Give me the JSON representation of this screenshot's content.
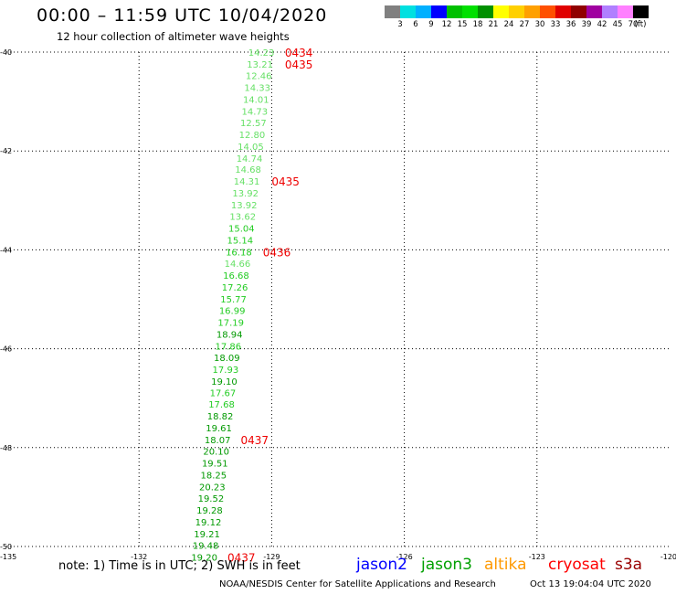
{
  "header": {
    "title": "00:00 – 11:59 UTC 10/04/2020",
    "subtitle": "12 hour collection of altimeter wave heights"
  },
  "color_scale": {
    "colors": [
      "#808080",
      "#00e0e0",
      "#00b0ff",
      "#0000ff",
      "#00c000",
      "#00e000",
      "#009000",
      "#ffff00",
      "#ffd000",
      "#ffa000",
      "#ff5000",
      "#e00000",
      "#900000",
      "#a000a0",
      "#b080ff",
      "#ff80ff",
      "#000000"
    ],
    "labels": [
      "3",
      "6",
      "9",
      "12",
      "15",
      "18",
      "21",
      "24",
      "27",
      "30",
      "33",
      "36",
      "39",
      "42",
      "45",
      "70",
      "(ft)"
    ]
  },
  "chart_data": {
    "type": "scatter",
    "title": "12 hour collection of altimeter wave heights",
    "xlim": [
      -135,
      -120
    ],
    "ylim": [
      50,
      40
    ],
    "x_ticks": [
      "-135",
      "-132",
      "-129",
      "-126",
      "-123",
      "-120"
    ],
    "y_ticks": [
      "-40",
      "-42",
      "-44",
      "-46",
      "-48",
      "-50"
    ],
    "grid": true,
    "value_unit": "ft",
    "points": [
      {
        "lon": -129.0,
        "lat": 40.0,
        "swh": "14.23"
      },
      {
        "lon": -129.03,
        "lat": 40.24,
        "swh": "13.21"
      },
      {
        "lon": -129.06,
        "lat": 40.47,
        "swh": "12.46"
      },
      {
        "lon": -129.09,
        "lat": 40.71,
        "swh": "14.33"
      },
      {
        "lon": -129.12,
        "lat": 40.95,
        "swh": "14.01"
      },
      {
        "lon": -129.15,
        "lat": 41.19,
        "swh": "14.73"
      },
      {
        "lon": -129.18,
        "lat": 41.42,
        "swh": "12.57"
      },
      {
        "lon": -129.21,
        "lat": 41.66,
        "swh": "12.80"
      },
      {
        "lon": -129.24,
        "lat": 41.9,
        "swh": "14.05"
      },
      {
        "lon": -129.27,
        "lat": 42.14,
        "swh": "14.74"
      },
      {
        "lon": -129.3,
        "lat": 42.37,
        "swh": "14.68"
      },
      {
        "lon": -129.33,
        "lat": 42.61,
        "swh": "14.31"
      },
      {
        "lon": -129.36,
        "lat": 42.85,
        "swh": "13.92"
      },
      {
        "lon": -129.39,
        "lat": 43.09,
        "swh": "13.92"
      },
      {
        "lon": -129.42,
        "lat": 43.32,
        "swh": "13.62"
      },
      {
        "lon": -129.45,
        "lat": 43.56,
        "swh": "15.04"
      },
      {
        "lon": -129.48,
        "lat": 43.8,
        "swh": "15.14"
      },
      {
        "lon": -129.51,
        "lat": 44.04,
        "swh": "16.18"
      },
      {
        "lon": -129.54,
        "lat": 44.27,
        "swh": "14.66"
      },
      {
        "lon": -129.57,
        "lat": 44.51,
        "swh": "16.68"
      },
      {
        "lon": -129.6,
        "lat": 44.75,
        "swh": "17.26"
      },
      {
        "lon": -129.63,
        "lat": 44.99,
        "swh": "15.77"
      },
      {
        "lon": -129.66,
        "lat": 45.22,
        "swh": "16.99"
      },
      {
        "lon": -129.69,
        "lat": 45.46,
        "swh": "17.19"
      },
      {
        "lon": -129.72,
        "lat": 45.7,
        "swh": "18.94"
      },
      {
        "lon": -129.75,
        "lat": 45.94,
        "swh": "17.86"
      },
      {
        "lon": -129.78,
        "lat": 46.17,
        "swh": "18.09"
      },
      {
        "lon": -129.81,
        "lat": 46.41,
        "swh": "17.93"
      },
      {
        "lon": -129.84,
        "lat": 46.65,
        "swh": "19.10"
      },
      {
        "lon": -129.87,
        "lat": 46.89,
        "swh": "17.67"
      },
      {
        "lon": -129.9,
        "lat": 47.12,
        "swh": "17.68"
      },
      {
        "lon": -129.93,
        "lat": 47.36,
        "swh": "18.82"
      },
      {
        "lon": -129.96,
        "lat": 47.6,
        "swh": "19.61"
      },
      {
        "lon": -129.99,
        "lat": 47.84,
        "swh": "18.07"
      },
      {
        "lon": -130.02,
        "lat": 48.07,
        "swh": "20.10"
      },
      {
        "lon": -130.05,
        "lat": 48.31,
        "swh": "19.51"
      },
      {
        "lon": -130.08,
        "lat": 48.55,
        "swh": "18.25"
      },
      {
        "lon": -130.11,
        "lat": 48.79,
        "swh": "20.23"
      },
      {
        "lon": -130.14,
        "lat": 49.02,
        "swh": "19.52"
      },
      {
        "lon": -130.17,
        "lat": 49.26,
        "swh": "19.28"
      },
      {
        "lon": -130.2,
        "lat": 49.5,
        "swh": "19.12"
      },
      {
        "lon": -130.23,
        "lat": 49.74,
        "swh": "19.21"
      },
      {
        "lon": -130.26,
        "lat": 49.97,
        "swh": "19.48"
      },
      {
        "lon": -130.29,
        "lat": 50.21,
        "swh": "19.20"
      }
    ],
    "time_labels": [
      {
        "text": "0434",
        "lon": -128.7,
        "lat": 40.0
      },
      {
        "text": "0435",
        "lon": -128.7,
        "lat": 40.24
      },
      {
        "text": "0435",
        "lon": -129.0,
        "lat": 42.61
      },
      {
        "text": "0436",
        "lon": -129.2,
        "lat": 44.04
      },
      {
        "text": "0437",
        "lon": -129.7,
        "lat": 47.84
      },
      {
        "text": "0437",
        "lon": -130.0,
        "lat": 50.21
      }
    ]
  },
  "footer": {
    "note": "note: 1) Time is in UTC; 2) SWH is in feet",
    "legend": [
      {
        "label": "jason2",
        "color": "#0000ff"
      },
      {
        "label": "jason3",
        "color": "#00a000"
      },
      {
        "label": "altika",
        "color": "#ff9900"
      },
      {
        "label": "cryosat",
        "color": "#ff0000"
      },
      {
        "label": "s3a",
        "color": "#990000"
      }
    ],
    "credit": "NOAA/NESDIS Center for Satellite Applications and Research",
    "timestamp": "Oct 13 19:04:04 UTC 2020"
  }
}
